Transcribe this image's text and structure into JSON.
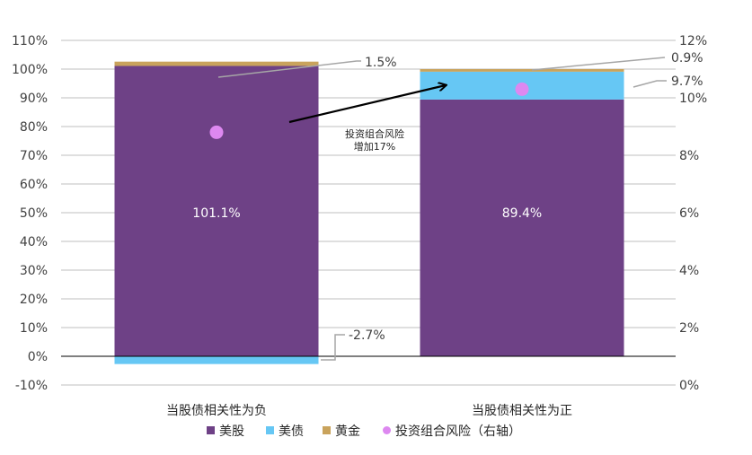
{
  "chart_data": {
    "type": "bar",
    "stacked": true,
    "categories": [
      "当股债相关性为负",
      "当股债相关性为正"
    ],
    "series": [
      {
        "name": "美股",
        "values": [
          101.1,
          89.4
        ],
        "color": "#6e4186"
      },
      {
        "name": "美债",
        "values": [
          -2.7,
          9.7
        ],
        "color": "#66c7f4"
      },
      {
        "name": "黄金",
        "values": [
          1.5,
          0.9
        ],
        "color": "#c9a35c"
      }
    ],
    "scatter_series": {
      "name": "投资组合风险（右轴）",
      "values": [
        8.8,
        10.3
      ],
      "color": "#dd88f0",
      "axis": "right"
    },
    "data_labels": [
      "101.1%",
      "89.4%",
      "1.5%",
      "-2.7%",
      "0.9%",
      "9.7%"
    ],
    "left_axis": {
      "ylim": [
        -10,
        110
      ],
      "ticks": [
        "-10%",
        "0%",
        "10%",
        "20%",
        "30%",
        "40%",
        "50%",
        "60%",
        "70%",
        "80%",
        "90%",
        "100%",
        "110%"
      ]
    },
    "right_axis": {
      "ylim": [
        0,
        12
      ],
      "ticks": [
        "0%",
        "2%",
        "4%",
        "6%",
        "8%",
        "10%",
        "12%"
      ]
    },
    "annotation": {
      "lines": [
        "投资组合风险",
        "增加17%"
      ]
    },
    "legend": {
      "position": "bottom",
      "items": [
        "美股",
        "美债",
        "黄金",
        "投资组合风险（右轴）"
      ]
    },
    "grid": true
  }
}
